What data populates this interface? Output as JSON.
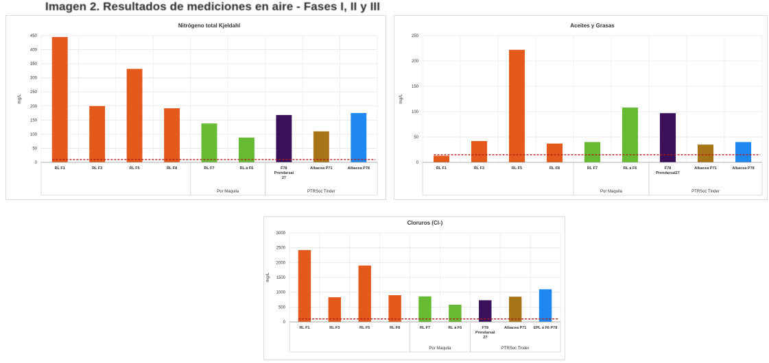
{
  "page_title": "Imagen 2. Resultados de mediciones en aire - Fases I, II y III",
  "chart_data": [
    {
      "type": "bar",
      "title": "Nitrógeno total Kjeldahl",
      "ylabel": "mg/L",
      "xlabel": "",
      "ylim": [
        0,
        450
      ],
      "yticks": [
        0,
        50,
        100,
        150,
        200,
        250,
        300,
        350,
        400,
        450
      ],
      "grid": true,
      "categories": [
        "RL F1",
        "RL F3",
        "RL F5",
        "RL F8",
        "RL F7",
        "RL á F6",
        "F78 Prendarsal 27",
        "Albacea P71",
        "Albacea P78"
      ],
      "values": [
        445,
        200,
        332,
        192,
        138,
        88,
        168,
        110,
        175
      ],
      "colors": [
        "#e35a1c",
        "#e35a1c",
        "#e35a1c",
        "#e35a1c",
        "#66bb33",
        "#66bb33",
        "#3a1058",
        "#a87418",
        "#1e88f0"
      ],
      "threshold": 10,
      "groups": [
        {
          "label": "Por Maquila",
          "start": 4,
          "end": 5
        },
        {
          "label": "PTRSoc Tinder",
          "start": 6,
          "end": 8
        }
      ]
    },
    {
      "type": "bar",
      "title": "Aceites y Grasas",
      "ylabel": "mg/L",
      "xlabel": "",
      "ylim": [
        0,
        250
      ],
      "yticks": [
        0,
        50,
        100,
        150,
        200,
        250
      ],
      "grid": true,
      "categories": [
        "RL F1",
        "RL F3",
        "RL F5",
        "RL F8",
        "RL F7",
        "RL á F6",
        "F78 Prendarsal27",
        "Albacea P71",
        "Albacea P78"
      ],
      "values": [
        13,
        42,
        222,
        37,
        40,
        108,
        97,
        35,
        40
      ],
      "colors": [
        "#e35a1c",
        "#e35a1c",
        "#e35a1c",
        "#e35a1c",
        "#66bb33",
        "#66bb33",
        "#3a1058",
        "#a87418",
        "#1e88f0"
      ],
      "threshold": 15,
      "groups": [
        {
          "label": "Por Maquila",
          "start": 4,
          "end": 5
        },
        {
          "label": "PTRSoc Tinder",
          "start": 6,
          "end": 8
        }
      ]
    },
    {
      "type": "bar",
      "title": "Cloruros (Cl-)",
      "ylabel": "mg/L",
      "xlabel": "",
      "ylim": [
        0,
        3000
      ],
      "yticks": [
        0,
        500,
        1000,
        1500,
        2000,
        2500,
        3000
      ],
      "grid": true,
      "categories": [
        "RL F1",
        "RL F3",
        "RL F5",
        "RL F8",
        "RL F7",
        "RL á F6",
        "F78 Prendarsal 27",
        "Albacea P71",
        "EPL á F6 P78"
      ],
      "values": [
        2420,
        830,
        1900,
        900,
        860,
        580,
        730,
        850,
        1100
      ],
      "colors": [
        "#e35a1c",
        "#e35a1c",
        "#e35a1c",
        "#e35a1c",
        "#66bb33",
        "#66bb33",
        "#3a1058",
        "#a87418",
        "#1e88f0"
      ],
      "threshold": 100,
      "groups": [
        {
          "label": "Por Maquila",
          "start": 4,
          "end": 5
        },
        {
          "label": "PTRSoc Tinder",
          "start": 6,
          "end": 8
        }
      ]
    }
  ]
}
